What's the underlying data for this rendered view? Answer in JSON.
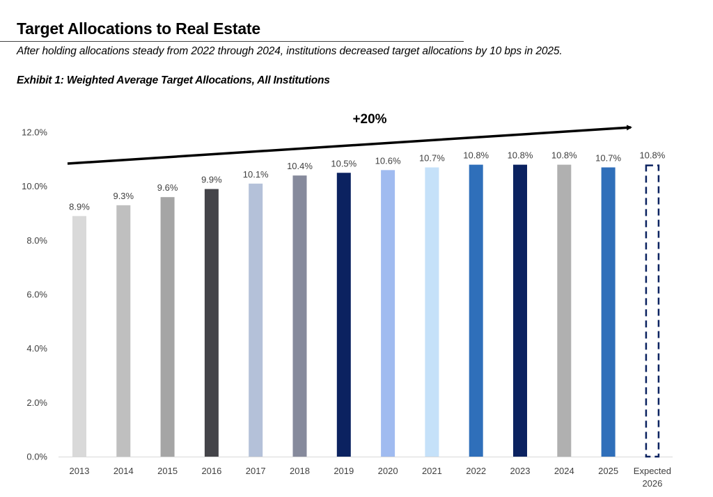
{
  "header": {
    "title": "Target Allocations to Real Estate",
    "subtitle": "After holding allocations steady from 2022 through 2024, institutions decreased target allocations by 10 bps in 2025.",
    "exhibit": "Exhibit 1: Weighted Average Target Allocations, All Institutions"
  },
  "chart_data": {
    "type": "bar",
    "title": "Exhibit 1: Weighted Average Target Allocations, All Institutions",
    "xlabel": "",
    "ylabel": "",
    "ylim": [
      0,
      12
    ],
    "yticks": [
      0,
      2,
      4,
      6,
      8,
      10,
      12
    ],
    "ytick_labels": [
      "0.0%",
      "2.0%",
      "4.0%",
      "6.0%",
      "8.0%",
      "10.0%",
      "12.0%"
    ],
    "grid": false,
    "categories": [
      "2013",
      "2014",
      "2015",
      "2016",
      "2017",
      "2018",
      "2019",
      "2020",
      "2021",
      "2022",
      "2023",
      "2024",
      "2025",
      "Expected 2026"
    ],
    "category_lines": [
      [
        "2013"
      ],
      [
        "2014"
      ],
      [
        "2015"
      ],
      [
        "2016"
      ],
      [
        "2017"
      ],
      [
        "2018"
      ],
      [
        "2019"
      ],
      [
        "2020"
      ],
      [
        "2021"
      ],
      [
        "2022"
      ],
      [
        "2023"
      ],
      [
        "2024"
      ],
      [
        "2025"
      ],
      [
        "Expected",
        "2026"
      ]
    ],
    "values": [
      8.9,
      9.3,
      9.6,
      9.9,
      10.1,
      10.4,
      10.5,
      10.6,
      10.7,
      10.8,
      10.8,
      10.8,
      10.7,
      10.8
    ],
    "data_labels": [
      "8.9%",
      "9.3%",
      "9.6%",
      "9.9%",
      "10.1%",
      "10.4%",
      "10.5%",
      "10.6%",
      "10.7%",
      "10.8%",
      "10.8%",
      "10.8%",
      "10.7%",
      "10.8%"
    ],
    "colors": [
      "#d9d9d9",
      "#bfbfbf",
      "#a5a5a5",
      "#444449",
      "#b4c1d9",
      "#868a9c",
      "#0b2260",
      "#a0bbf0",
      "#c5e1f9",
      "#2f6fba",
      "#0b2260",
      "#b0b0b0",
      "#2f6fba",
      "none"
    ],
    "dashed_outline": [
      false,
      false,
      false,
      false,
      false,
      false,
      false,
      false,
      false,
      false,
      false,
      false,
      false,
      true
    ],
    "outline_color": "#0b2260",
    "annotation": {
      "label": "+20%",
      "type": "trend-arrow",
      "from_category": "2013",
      "to_category": "Expected 2026"
    },
    "legend": "none"
  }
}
